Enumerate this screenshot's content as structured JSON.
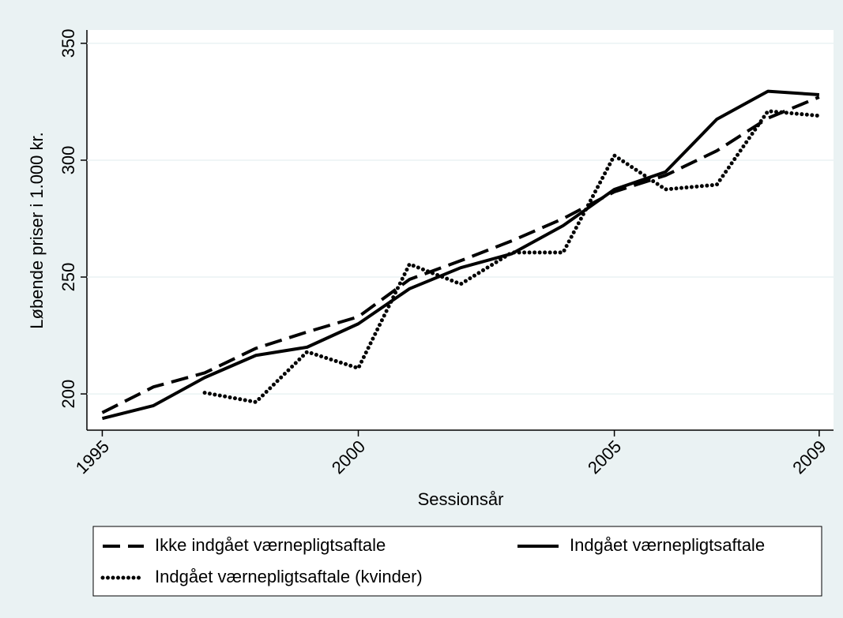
{
  "chart_data": {
    "type": "line",
    "y_label": "Løbende priser i 1.000 kr.",
    "x_label": "Sessionsår",
    "x": [
      1995,
      1996,
      1997,
      1998,
      1999,
      2000,
      2001,
      2002,
      2003,
      2004,
      2005,
      2006,
      2007,
      2008,
      2009
    ],
    "series": [
      {
        "name": "Ikke indgået værnepligtsaftale",
        "color": "#000000",
        "dash": "dashed",
        "values": [
          192,
          203,
          209,
          219.5,
          226.5,
          233,
          249,
          257,
          265.5,
          275,
          286.5,
          293.5,
          304,
          318,
          327
        ]
      },
      {
        "name": "Indgået værnepligtsaftale",
        "color": "#000000",
        "dash": "solid",
        "values": [
          189.5,
          195,
          207,
          216.5,
          220,
          230,
          245,
          254,
          260,
          272,
          287.5,
          295,
          317.5,
          329.5,
          328
        ]
      },
      {
        "name": "Indgået værnepligtsaftale (kvinder)",
        "color": "#000000",
        "dash": "dotted",
        "values": [
          null,
          null,
          200.5,
          196.5,
          218,
          211,
          255.5,
          247,
          260.5,
          260.5,
          302,
          287.5,
          289.5,
          321,
          319
        ]
      }
    ],
    "xlim": [
      1994.7,
      2009.28
    ],
    "xticks": [
      1995,
      2000,
      2005,
      2009
    ],
    "ylim": [
      184.5,
      355.7
    ],
    "yticks": [
      200,
      250,
      300,
      350
    ],
    "grid": true
  }
}
